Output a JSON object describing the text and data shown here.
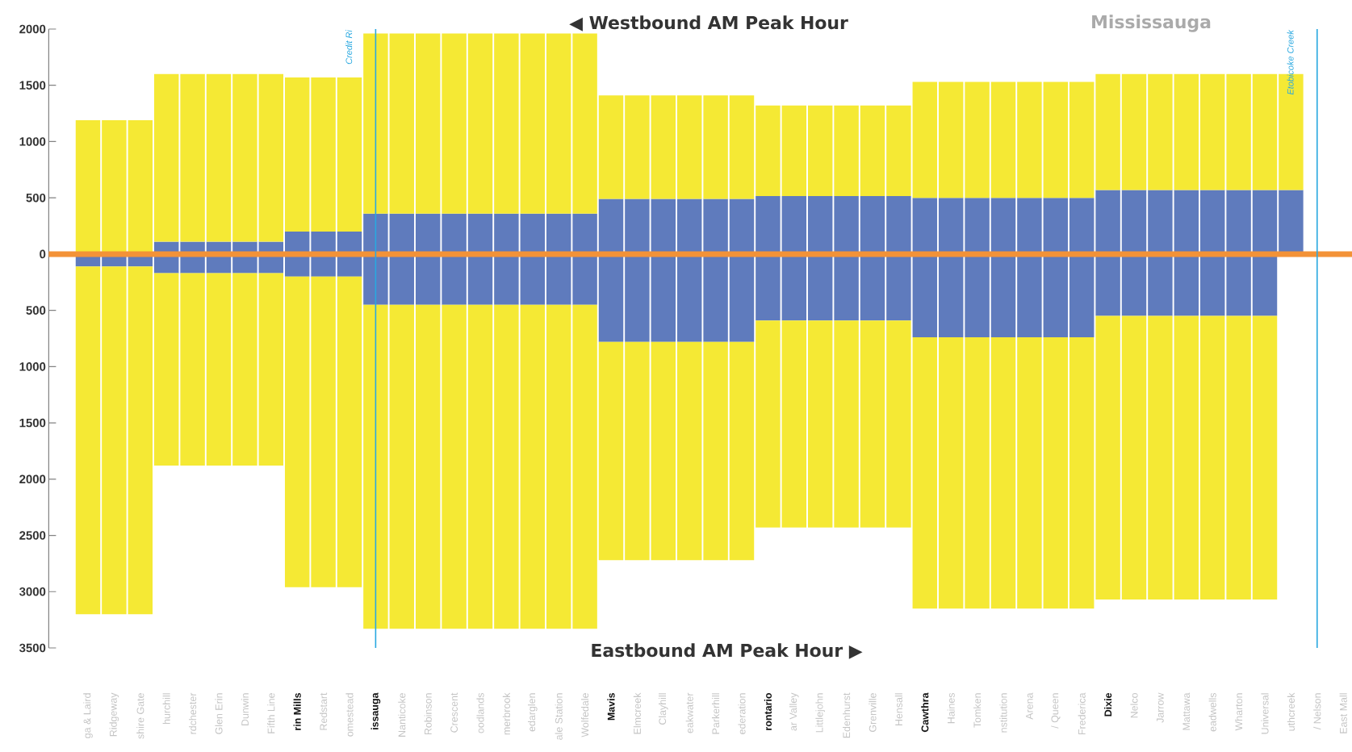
{
  "chart_data": {
    "type": "bar",
    "stacked": true,
    "categories": [
      "ga & Laird",
      "Ridgeway",
      "shire Gate",
      "hurchill",
      "rdchester",
      "Glen Erin",
      "Dunwin",
      "Fifth Line",
      "rin Mills",
      "Redstart",
      "omestead",
      "issauga",
      "Nanticoke",
      "Robinson",
      "Crescent",
      "oodlands",
      "merbrook",
      "edarglen",
      "ale Station",
      "Wolfedale",
      "Mavis",
      "Elmcreek",
      "Clayhill",
      "eakwater",
      "Parkerhill",
      "ederation",
      "rontario",
      "ar Valley",
      "Littlejohn",
      "Edenhurst",
      "Grenville",
      "Hensall",
      "Cawthra",
      "Haines",
      "Tomken",
      "nstitution",
      "Arena",
      "/ Queen",
      "Frederica",
      "Dixie",
      "Nelco",
      "Jarrow",
      "Mattawa",
      "eadwells",
      "Wharton",
      "Universal",
      "uthcreek",
      "/ Nelson",
      "East Mall"
    ],
    "series": [
      {
        "color": "#5f7bbd",
        "values": [
          null,
          null,
          null,
          110,
          110,
          110,
          110,
          110,
          200,
          200,
          200,
          360,
          360,
          360,
          360,
          360,
          360,
          360,
          360,
          360,
          490,
          490,
          490,
          490,
          490,
          490,
          515,
          515,
          515,
          515,
          515,
          515,
          500,
          500,
          500,
          500,
          500,
          500,
          500,
          570,
          570,
          570,
          570,
          570,
          570,
          570,
          570,
          null,
          null
        ]
      },
      {
        "color": "#f5e934",
        "values": [
          1190,
          1190,
          1190,
          1490,
          1490,
          1490,
          1490,
          1490,
          1370,
          1370,
          1370,
          1600,
          1600,
          1600,
          1600,
          1600,
          1600,
          1600,
          1600,
          1600,
          920,
          920,
          920,
          920,
          920,
          920,
          805,
          805,
          805,
          805,
          805,
          805,
          1030,
          1030,
          1030,
          1030,
          1030,
          1030,
          1030,
          1030,
          1030,
          1030,
          1030,
          1030,
          1030,
          1030,
          1030,
          null,
          null
        ]
      },
      {
        "color": "#5f7bbd",
        "values": [
          -110,
          -110,
          -110,
          -170,
          -170,
          -170,
          -170,
          -170,
          -200,
          -200,
          -200,
          -450,
          -450,
          -450,
          -450,
          -450,
          -450,
          -450,
          -450,
          -450,
          -780,
          -780,
          -780,
          -780,
          -780,
          -780,
          -590,
          -590,
          -590,
          -590,
          -590,
          -590,
          -740,
          -740,
          -740,
          -740,
          -740,
          -740,
          -740,
          -550,
          -550,
          -550,
          -550,
          -550,
          -550,
          -550,
          null,
          null,
          null
        ]
      },
      {
        "color": "#f5e934",
        "values": [
          -3090,
          -3090,
          -3090,
          -1710,
          -1710,
          -1710,
          -1710,
          -1710,
          -2760,
          -2760,
          -2760,
          -2880,
          -2880,
          -2880,
          -2880,
          -2880,
          -2880,
          -2880,
          -2880,
          -2880,
          -1940,
          -1940,
          -1940,
          -1940,
          -1940,
          -1940,
          -1840,
          -1840,
          -1840,
          -1840,
          -1840,
          -1840,
          -2410,
          -2410,
          -2410,
          -2410,
          -2410,
          -2410,
          -2410,
          -2520,
          -2520,
          -2520,
          -2520,
          -2520,
          -2520,
          -2520,
          null,
          null,
          null
        ]
      }
    ],
    "ylim": [
      -3500,
      2000
    ],
    "yticks": [
      2000,
      1500,
      1000,
      500,
      0,
      {
        "value": -500,
        "label": "500"
      },
      {
        "value": -1000,
        "label": "1000"
      },
      {
        "value": -1500,
        "label": "1500"
      },
      {
        "value": -2000,
        "label": "2000"
      },
      {
        "value": -2500,
        "label": "2500"
      },
      {
        "value": -3000,
        "label": "3000"
      },
      {
        "value": -3500,
        "label": "3500"
      }
    ],
    "ref_lines": [
      {
        "axis": "y",
        "value": 0,
        "color": "#f39237"
      },
      {
        "axis": "x",
        "value": "issauga",
        "label": "Credit Ri",
        "color": "#29a8e0"
      },
      {
        "axis": "x",
        "value": "/ Nelson",
        "label": "Etobicoke Creek",
        "color": "#29a8e0"
      }
    ],
    "annotations": [
      "◀ Westbound AM Peak Hour",
      "Eastbound AM Peak Hour ▶",
      "Mississauga"
    ]
  }
}
